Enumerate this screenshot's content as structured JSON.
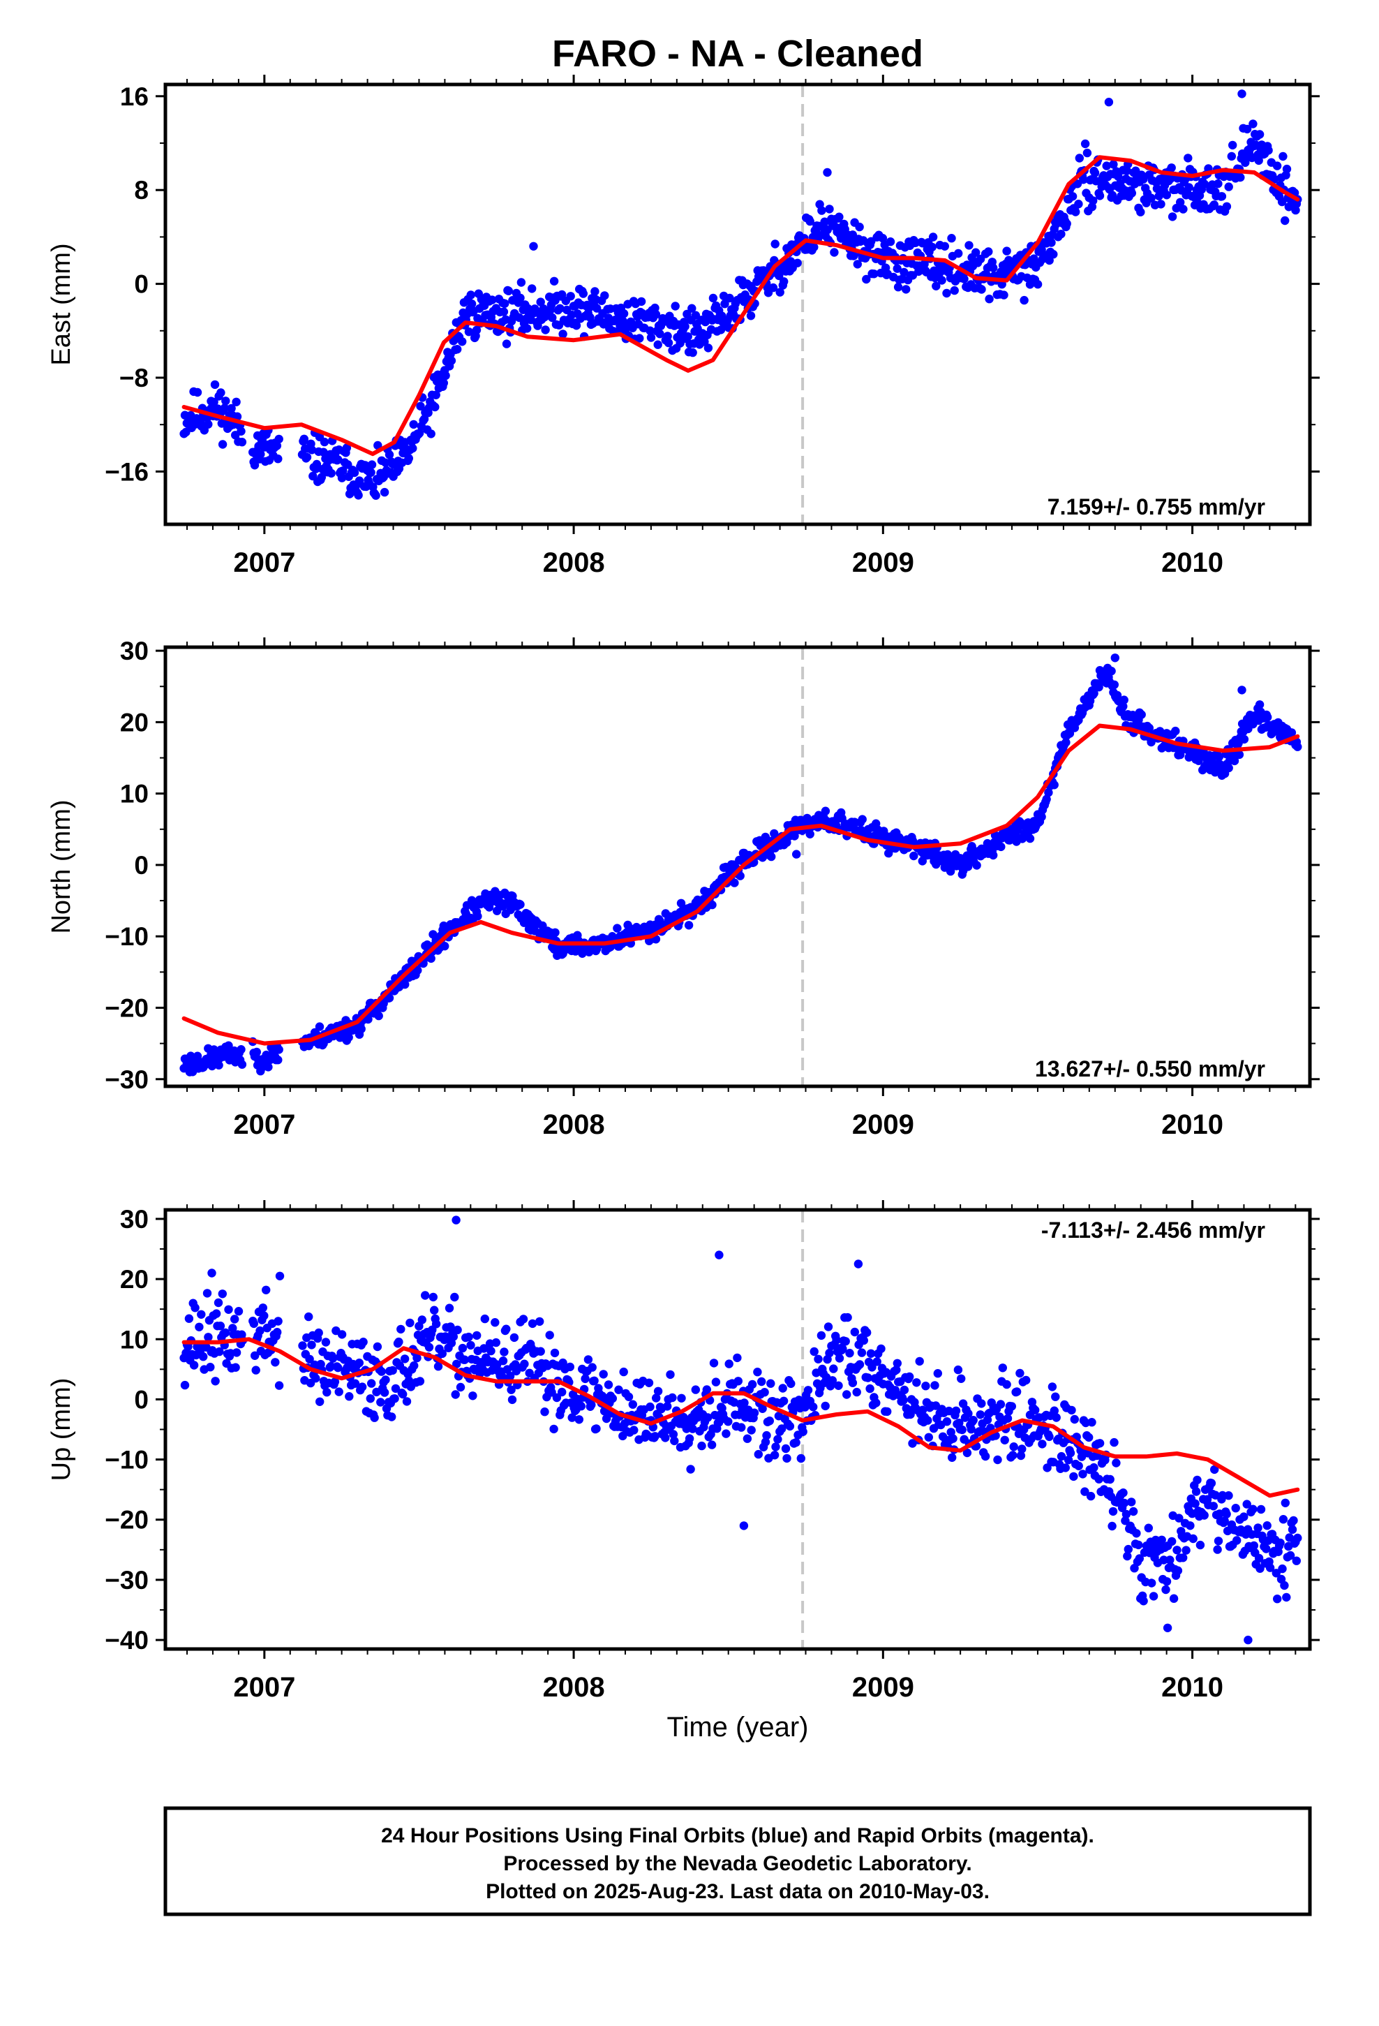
{
  "title": "FARO  - NA - Cleaned",
  "xlabel": "Time (year)",
  "footer": {
    "lines": [
      "24 Hour Positions Using Final Orbits (blue) and Rapid Orbits (magenta).",
      "Processed by the Nevada Geodetic Laboratory.",
      "Plotted on 2025-Aug-23. Last data on 2010-May-03."
    ]
  },
  "colors": {
    "points": "#0000ff",
    "fit": "#ff0000",
    "marker_line": "#c8c8c8",
    "frame": "#000000"
  },
  "chart_data": [
    {
      "type": "scatter",
      "ylabel": "East (mm)",
      "xlim": [
        2006.68,
        2010.38
      ],
      "ylim": [
        -20.5,
        17.0
      ],
      "yticks": [
        -16,
        -8,
        0,
        8,
        16
      ],
      "ytick_labels": [
        "−16",
        "−8",
        "0",
        "8",
        "16"
      ],
      "xticks": [
        2007,
        2008,
        2009,
        2010
      ],
      "xtick_labels": [
        "2007",
        "2008",
        "2009",
        "2010"
      ],
      "vertical_marker_x": 2008.74,
      "rate_label": "7.159+/- 0.755 mm/yr",
      "rate_position": "bottom-right",
      "grid": false,
      "fit_line": {
        "name": "",
        "x": [
          2006.74,
          2006.85,
          2007.0,
          2007.12,
          2007.25,
          2007.35,
          2007.42,
          2007.5,
          2007.58,
          2007.65,
          2007.75,
          2007.85,
          2008.0,
          2008.15,
          2008.3,
          2008.37,
          2008.45,
          2008.55,
          2008.65,
          2008.75,
          2008.85,
          2009.0,
          2009.1,
          2009.2,
          2009.3,
          2009.4,
          2009.5,
          2009.6,
          2009.7,
          2009.8,
          2009.9,
          2010.0,
          2010.1,
          2010.2,
          2010.3,
          2010.34
        ],
        "y": [
          -10.5,
          -11.3,
          -12.3,
          -12.0,
          -13.3,
          -14.5,
          -13.5,
          -9.5,
          -5.0,
          -3.3,
          -3.6,
          -4.5,
          -4.8,
          -4.3,
          -6.5,
          -7.4,
          -6.5,
          -2.5,
          1.5,
          3.7,
          3.3,
          2.2,
          2.2,
          2.0,
          0.5,
          0.3,
          3.5,
          8.5,
          10.8,
          10.5,
          9.5,
          9.2,
          9.7,
          9.5,
          7.8,
          7.2
        ]
      },
      "anchors": {
        "x": [
          2006.74,
          2006.85,
          2006.98,
          2007.1,
          2007.25,
          2007.35,
          2007.45,
          2007.55,
          2007.65,
          2007.8,
          2008.0,
          2008.15,
          2008.3,
          2008.4,
          2008.5,
          2008.65,
          2008.8,
          2009.0,
          2009.2,
          2009.35,
          2009.5,
          2009.65,
          2009.8,
          2009.95,
          2010.1,
          2010.2,
          2010.3,
          2010.34
        ],
        "y": [
          -11.5,
          -10.5,
          -14.0,
          -14.5,
          -15.5,
          -17.0,
          -15.0,
          -10.0,
          -2.5,
          -2.5,
          -2.0,
          -3.0,
          -3.5,
          -4.5,
          -2.5,
          1.0,
          5.0,
          2.0,
          1.5,
          0.5,
          1.5,
          9.0,
          8.5,
          8.0,
          8.5,
          12.0,
          8.0,
          7.0
        ]
      },
      "points_count": 1150,
      "noise": 1.5,
      "seed": 11,
      "gaps": [
        [
          2006.93,
          2006.96
        ],
        [
          2007.05,
          2007.12
        ]
      ],
      "outliers": [
        [
          2009.73,
          15.5
        ],
        [
          2010.16,
          16.2
        ],
        [
          2008.82,
          9.5
        ],
        [
          2007.87,
          3.2
        ]
      ]
    },
    {
      "type": "scatter",
      "ylabel": "North (mm)",
      "xlim": [
        2006.68,
        2010.38
      ],
      "ylim": [
        -31.0,
        30.5
      ],
      "yticks": [
        -30,
        -20,
        -10,
        0,
        10,
        20,
        30
      ],
      "ytick_labels": [
        "−30",
        "−20",
        "−10",
        "0",
        "10",
        "20",
        "30"
      ],
      "xticks": [
        2007,
        2008,
        2009,
        2010
      ],
      "xtick_labels": [
        "2007",
        "2008",
        "2009",
        "2010"
      ],
      "vertical_marker_x": 2008.74,
      "rate_label": "13.627+/- 0.550 mm/yr",
      "rate_position": "bottom-right",
      "grid": false,
      "fit_line": {
        "name": "",
        "x": [
          2006.74,
          2006.85,
          2007.0,
          2007.15,
          2007.3,
          2007.45,
          2007.6,
          2007.7,
          2007.8,
          2007.95,
          2008.1,
          2008.25,
          2008.4,
          2008.55,
          2008.7,
          2008.8,
          2008.95,
          2009.1,
          2009.25,
          2009.4,
          2009.5,
          2009.6,
          2009.7,
          2009.8,
          2009.95,
          2010.1,
          2010.25,
          2010.34
        ],
        "y": [
          -21.5,
          -23.5,
          -25.0,
          -24.5,
          -22.0,
          -15.5,
          -9.5,
          -8.0,
          -9.5,
          -11.0,
          -11.0,
          -10.0,
          -6.5,
          0.0,
          5.0,
          5.5,
          3.5,
          2.5,
          3.0,
          5.5,
          9.5,
          16.0,
          19.5,
          19.0,
          17.0,
          16.0,
          16.5,
          18.0
        ]
      },
      "anchors": {
        "x": [
          2006.74,
          2006.9,
          2007.0,
          2007.15,
          2007.3,
          2007.45,
          2007.6,
          2007.72,
          2007.8,
          2007.95,
          2008.1,
          2008.25,
          2008.4,
          2008.55,
          2008.7,
          2008.8,
          2008.95,
          2009.1,
          2009.25,
          2009.4,
          2009.5,
          2009.6,
          2009.72,
          2009.8,
          2009.95,
          2010.1,
          2010.2,
          2010.34
        ],
        "y": [
          -28.0,
          -26.5,
          -27.0,
          -24.5,
          -22.5,
          -16.0,
          -9.0,
          -5.0,
          -5.5,
          -11.5,
          -11.0,
          -9.0,
          -6.0,
          0.5,
          4.5,
          6.5,
          4.5,
          2.5,
          0.0,
          4.0,
          6.0,
          19.0,
          27.0,
          20.0,
          17.0,
          13.5,
          21.0,
          17.5
        ]
      },
      "points_count": 1150,
      "noise": 1.1,
      "seed": 23,
      "gaps": [
        [
          2006.93,
          2006.96
        ],
        [
          2007.05,
          2007.12
        ]
      ],
      "outliers": [
        [
          2009.75,
          29.0
        ],
        [
          2010.16,
          24.5
        ],
        [
          2008.72,
          1.5
        ]
      ]
    },
    {
      "type": "scatter",
      "ylabel": "Up (mm)",
      "xlim": [
        2006.68,
        2010.38
      ],
      "ylim": [
        -41.5,
        31.5
      ],
      "yticks": [
        -40,
        -30,
        -20,
        -10,
        0,
        10,
        20,
        30
      ],
      "ytick_labels": [
        "−40",
        "−30",
        "−20",
        "−10",
        "0",
        "10",
        "20",
        "30"
      ],
      "xticks": [
        2007,
        2008,
        2009,
        2010
      ],
      "xtick_labels": [
        "2007",
        "2008",
        "2009",
        "2010"
      ],
      "vertical_marker_x": 2008.74,
      "rate_label": "-7.113+/- 2.456 mm/yr",
      "rate_position": "top-right",
      "grid": false,
      "fit_line": {
        "name": "",
        "x": [
          2006.74,
          2006.85,
          2006.95,
          2007.05,
          2007.15,
          2007.25,
          2007.35,
          2007.45,
          2007.55,
          2007.65,
          2007.75,
          2007.85,
          2007.95,
          2008.05,
          2008.15,
          2008.25,
          2008.35,
          2008.45,
          2008.55,
          2008.65,
          2008.74,
          2008.85,
          2008.95,
          2009.05,
          2009.15,
          2009.25,
          2009.35,
          2009.45,
          2009.55,
          2009.65,
          2009.75,
          2009.85,
          2009.95,
          2010.05,
          2010.15,
          2010.25,
          2010.34
        ],
        "y": [
          9.5,
          9.5,
          10.0,
          8.0,
          5.0,
          3.5,
          5.0,
          8.5,
          7.0,
          4.0,
          3.0,
          3.0,
          3.0,
          0.5,
          -2.5,
          -4.0,
          -2.0,
          1.0,
          1.0,
          -1.5,
          -3.5,
          -2.5,
          -2.0,
          -4.5,
          -8.0,
          -8.5,
          -5.5,
          -3.5,
          -4.5,
          -8.0,
          -9.5,
          -9.5,
          -9.0,
          -10.0,
          -13.0,
          -16.0,
          -15.0
        ]
      },
      "anchors": {
        "x": [
          2006.74,
          2006.9,
          2007.0,
          2007.2,
          2007.4,
          2007.55,
          2007.7,
          2007.85,
          2008.0,
          2008.2,
          2008.35,
          2008.5,
          2008.65,
          2008.74,
          2008.85,
          2009.0,
          2009.15,
          2009.3,
          2009.45,
          2009.6,
          2009.75,
          2009.85,
          2009.95,
          2010.05,
          2010.15,
          2010.25,
          2010.34
        ],
        "y": [
          10.0,
          10.0,
          11.0,
          5.0,
          3.0,
          10.0,
          6.0,
          6.0,
          2.0,
          -2.5,
          -3.0,
          0.0,
          -4.0,
          -3.0,
          8.0,
          5.0,
          -3.0,
          -4.0,
          -3.0,
          -6.0,
          -15.0,
          -28.0,
          -24.0,
          -15.0,
          -22.0,
          -26.0,
          -22.0
        ]
      },
      "points_count": 1100,
      "noise": 5.0,
      "seed": 37,
      "gaps": [
        [
          2006.93,
          2006.96
        ],
        [
          2007.05,
          2007.12
        ]
      ],
      "outliers": [
        [
          2007.62,
          29.8
        ],
        [
          2008.47,
          24.0
        ],
        [
          2008.92,
          22.5
        ],
        [
          2010.18,
          -40.0
        ],
        [
          2009.92,
          -38.0
        ],
        [
          2008.55,
          -21.0
        ],
        [
          2007.05,
          20.5
        ],
        [
          2006.83,
          21.0
        ]
      ]
    }
  ]
}
